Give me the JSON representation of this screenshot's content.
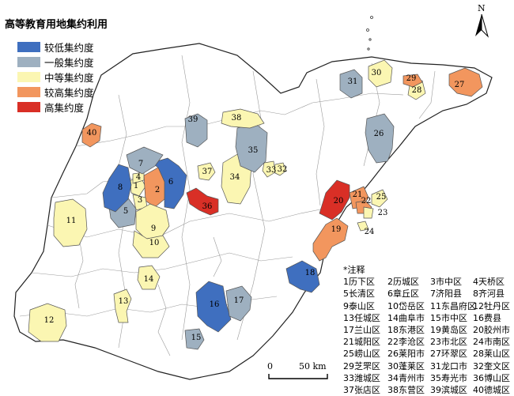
{
  "title": "高等教育用地集约利用",
  "legend": [
    {
      "label": "较低集约度",
      "color": "#3f6fbf"
    },
    {
      "label": "一般集约度",
      "color": "#9eb0c0"
    },
    {
      "label": "中等集约度",
      "color": "#fbf6b2"
    },
    {
      "label": "较高集约度",
      "color": "#f2965e"
    },
    {
      "label": "高集约度",
      "color": "#d92f26"
    }
  ],
  "north": {
    "label": "N"
  },
  "scale": {
    "zero": "0",
    "distance": "50 km"
  },
  "notes": {
    "title": "*注释",
    "items": [
      "1历下区",
      "2历城区",
      "3市中区",
      "4天桥区",
      "5长清区",
      "6章丘区",
      "7济阳县",
      "8齐河县",
      "9泰山区",
      "10岱岳区",
      "11东昌府区",
      "12牡丹区",
      "13任城区",
      "14曲阜市",
      "15市中区",
      "16费县",
      "17兰山区",
      "18东港区",
      "19黄岛区",
      "20胶州市",
      "21城阳区",
      "22李沧区",
      "23市北区",
      "24市南区",
      "25崂山区",
      "26莱阳市",
      "27环翠区",
      "28莱山区",
      "29芝罘区",
      "30蓬莱区",
      "31龙口市",
      "32奎文区",
      "33潍城区",
      "34青州市",
      "35寿光市",
      "36博山区",
      "37张店区",
      "38东营区",
      "39滨城区",
      "40德城区"
    ]
  },
  "districts": [
    {
      "id": "1",
      "level": 3
    },
    {
      "id": "2",
      "level": 4
    },
    {
      "id": "3",
      "level": 3
    },
    {
      "id": "4",
      "level": 3
    },
    {
      "id": "5",
      "level": 2
    },
    {
      "id": "6",
      "level": 1
    },
    {
      "id": "7",
      "level": 2
    },
    {
      "id": "8",
      "level": 1
    },
    {
      "id": "9",
      "level": 3
    },
    {
      "id": "10",
      "level": 3
    },
    {
      "id": "11",
      "level": 3
    },
    {
      "id": "12",
      "level": 3
    },
    {
      "id": "13",
      "level": 3
    },
    {
      "id": "14",
      "level": 3
    },
    {
      "id": "15",
      "level": 2
    },
    {
      "id": "16",
      "level": 1
    },
    {
      "id": "17",
      "level": 2
    },
    {
      "id": "18",
      "level": 1
    },
    {
      "id": "19",
      "level": 4
    },
    {
      "id": "20",
      "level": 5
    },
    {
      "id": "21",
      "level": 4
    },
    {
      "id": "22",
      "level": 4
    },
    {
      "id": "23",
      "level": 3
    },
    {
      "id": "24",
      "level": 3
    },
    {
      "id": "25",
      "level": 3
    },
    {
      "id": "26",
      "level": 2
    },
    {
      "id": "27",
      "level": 4
    },
    {
      "id": "28",
      "level": 3
    },
    {
      "id": "29",
      "level": 4
    },
    {
      "id": "30",
      "level": 3
    },
    {
      "id": "31",
      "level": 2
    },
    {
      "id": "32",
      "level": 3
    },
    {
      "id": "33",
      "level": 3
    },
    {
      "id": "34",
      "level": 3
    },
    {
      "id": "35",
      "level": 2
    },
    {
      "id": "36",
      "level": 5
    },
    {
      "id": "37",
      "level": 3
    },
    {
      "id": "38",
      "level": 3
    },
    {
      "id": "39",
      "level": 2
    },
    {
      "id": "40",
      "level": 4
    }
  ]
}
